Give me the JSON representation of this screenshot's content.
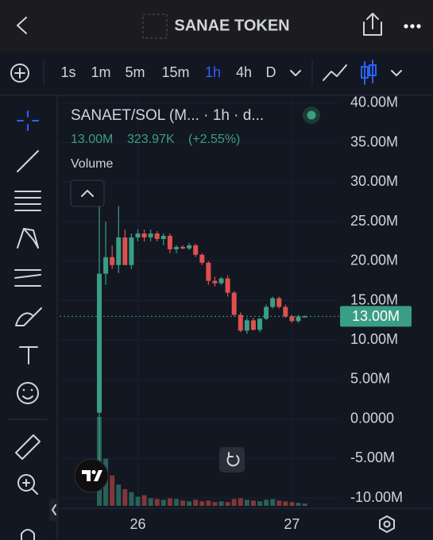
{
  "header": {
    "title": "SANAE TOKEN"
  },
  "toolbar": {
    "intervals": [
      "1s",
      "1m",
      "5m",
      "15m",
      "1h",
      "4h",
      "D"
    ]
  },
  "legend": {
    "symbol": "SANAET/SOL (M... · 1h · d...",
    "price": "13.00M",
    "volume": "323.97K",
    "change": "(+2.55%)",
    "volume_title": "Volume"
  },
  "chart_data": {
    "type": "candlestick",
    "categories": [
      null,
      null,
      null,
      null,
      null,
      null,
      "26",
      null,
      null,
      null,
      null,
      null,
      null,
      null,
      null,
      null,
      null,
      null,
      null,
      null,
      null,
      null,
      null,
      null,
      null,
      null,
      null,
      null,
      null,
      null,
      "27",
      null,
      null
    ],
    "open": [
      800000,
      18400000,
      20500000,
      19500000,
      23000000,
      19500000,
      23000000,
      23500000,
      23000000,
      23500000,
      22800000,
      23200000,
      21500000,
      21800000,
      21600000,
      22000000,
      20800000,
      19800000,
      17500000,
      17200000,
      17800000,
      16000000,
      13200000,
      11200000,
      12500000,
      11300000,
      12700000,
      14200000,
      15300000,
      14200000,
      13000000,
      12400000,
      13000000
    ],
    "high": [
      27400000,
      25000000,
      22000000,
      27000000,
      24000000,
      23500000,
      24000000,
      24000000,
      24000000,
      23800000,
      23500000,
      23500000,
      22000000,
      22000000,
      22300000,
      22200000,
      21000000,
      20000000,
      18000000,
      18000000,
      18200000,
      16200000,
      13500000,
      12800000,
      12800000,
      12800000,
      14500000,
      15500000,
      15500000,
      14500000,
      13200000,
      13200000,
      13100000
    ],
    "low": [
      -9000000,
      17000000,
      19000000,
      18500000,
      19500000,
      19000000,
      22500000,
      22500000,
      22500000,
      22500000,
      22000000,
      21000000,
      21000000,
      21500000,
      21400000,
      20500000,
      19500000,
      17000000,
      16800000,
      17000000,
      15500000,
      13000000,
      11000000,
      10800000,
      11200000,
      11000000,
      12500000,
      14000000,
      14000000,
      12800000,
      12200000,
      12200000,
      12900000
    ],
    "close": [
      18400000,
      20500000,
      19500000,
      23000000,
      19500000,
      23000000,
      23500000,
      23000000,
      23500000,
      22800000,
      23200000,
      21500000,
      21800000,
      21600000,
      22000000,
      20800000,
      19800000,
      17500000,
      17200000,
      17800000,
      16000000,
      13200000,
      11200000,
      12500000,
      11300000,
      12700000,
      14200000,
      15300000,
      14200000,
      13000000,
      12400000,
      13000000,
      13000000
    ],
    "volume": [
      117,
      62,
      40,
      28,
      22,
      18,
      12,
      14,
      10,
      9,
      8,
      10,
      9,
      7,
      6,
      8,
      6,
      7,
      5,
      6,
      5,
      9,
      10,
      8,
      7,
      6,
      8,
      9,
      7,
      6,
      5,
      4,
      3
    ],
    "up_color": "#3a9e84",
    "down_color": "#e0504e",
    "ylim": [
      -11300000,
      40800000
    ],
    "yticks": [
      {
        "value": 40000000,
        "label": "40.00M"
      },
      {
        "value": 35000000,
        "label": "35.00M"
      },
      {
        "value": 30000000,
        "label": "30.00M"
      },
      {
        "value": 25000000,
        "label": "25.00M"
      },
      {
        "value": 20000000,
        "label": "20.00M"
      },
      {
        "value": 15000000,
        "label": "15.00M"
      },
      {
        "value": 10000000,
        "label": "10.00M"
      },
      {
        "value": 5000000,
        "label": "5.00M"
      },
      {
        "value": 0,
        "label": "0.0000"
      },
      {
        "value": -5000000,
        "label": "-5.00M"
      },
      {
        "value": -10000000,
        "label": "-10.00M"
      }
    ],
    "last_price": {
      "value": 13000000,
      "label": "13.00M"
    },
    "grid": true
  }
}
